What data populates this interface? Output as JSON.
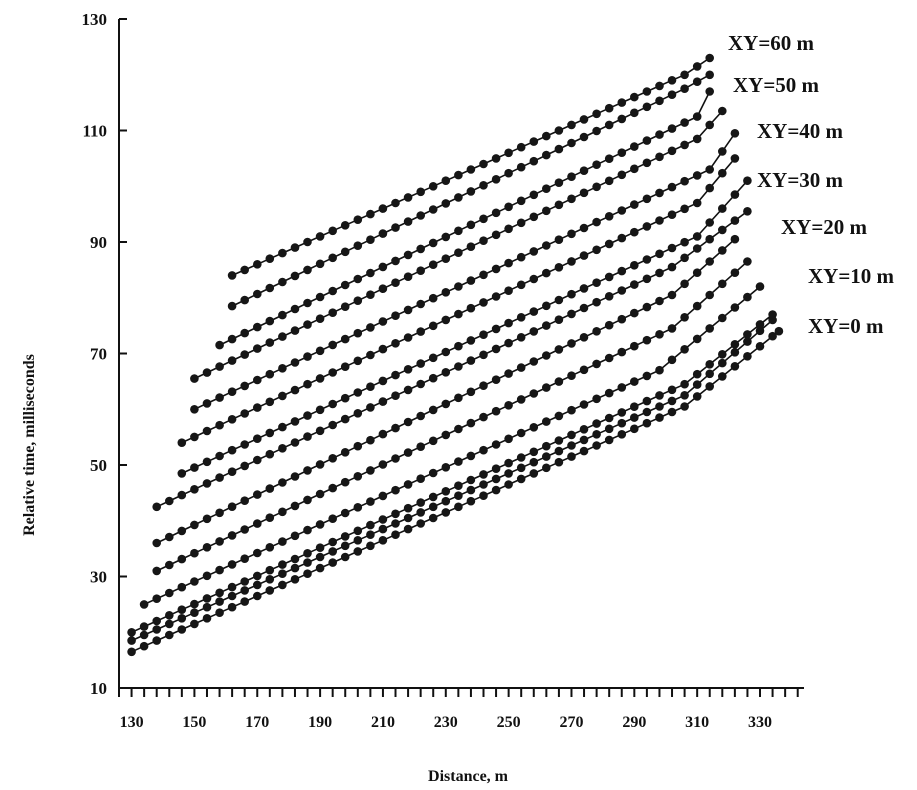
{
  "chart_data": {
    "type": "line",
    "xlabel": "Distance, m",
    "ylabel": "Relative time,  milliseconds",
    "xlim": [
      126,
      344
    ],
    "ylim": [
      10,
      130
    ],
    "x_ticks": [
      130,
      150,
      170,
      190,
      210,
      230,
      250,
      270,
      290,
      310,
      330
    ],
    "y_ticks": [
      10,
      30,
      50,
      70,
      90,
      110,
      130
    ],
    "x_minor_step": 4,
    "grid": false,
    "marker": "filled-circle",
    "line_color": "#111111",
    "series": [
      {
        "name": "XY=0 m",
        "x": [
          130,
          306,
          336
        ],
        "y": [
          16.5,
          60.5,
          74
        ]
      },
      {
        "name": "",
        "x": [
          130,
          306,
          334
        ],
        "y": [
          18.5,
          62.5,
          76
        ]
      },
      {
        "name": "",
        "x": [
          130,
          306,
          334
        ],
        "y": [
          20,
          64.5,
          77
        ]
      },
      {
        "name": "XY=10 m",
        "x": [
          134,
          298,
          330
        ],
        "y": [
          25,
          67,
          82
        ]
      },
      {
        "name": "",
        "x": [
          138,
          302,
          326
        ],
        "y": [
          31,
          74.5,
          86.5
        ]
      },
      {
        "name": "XY=20 m",
        "x": [
          138,
          302,
          322
        ],
        "y": [
          36,
          80.5,
          90.5
        ]
      },
      {
        "name": "",
        "x": [
          138,
          302,
          326
        ],
        "y": [
          42.5,
          85.5,
          95.5
        ]
      },
      {
        "name": "XY=30 m",
        "x": [
          146,
          310,
          326
        ],
        "y": [
          48.5,
          91,
          101
        ]
      },
      {
        "name": "",
        "x": [
          146,
          310,
          322
        ],
        "y": [
          54,
          97,
          105
        ]
      },
      {
        "name": "XY=40 m",
        "x": [
          150,
          314,
          322
        ],
        "y": [
          60,
          103,
          109.5
        ]
      },
      {
        "name": "",
        "x": [
          150,
          310,
          318
        ],
        "y": [
          65.5,
          108.5,
          113.5
        ]
      },
      {
        "name": "XY=50 m",
        "x": [
          158,
          310,
          314
        ],
        "y": [
          71.5,
          112.5,
          117
        ]
      },
      {
        "name": "",
        "x": [
          162,
          306,
          314
        ],
        "y": [
          78.5,
          117.5,
          120
        ]
      },
      {
        "name": "XY=60 m",
        "x": [
          162,
          306,
          314
        ],
        "y": [
          84,
          120,
          123
        ]
      }
    ],
    "legend_labels": [
      "XY=60 m",
      "XY=50 m",
      "XY=40 m",
      "XY=30 m",
      "XY=20 m",
      "XY=10 m",
      "XY=0 m"
    ]
  }
}
